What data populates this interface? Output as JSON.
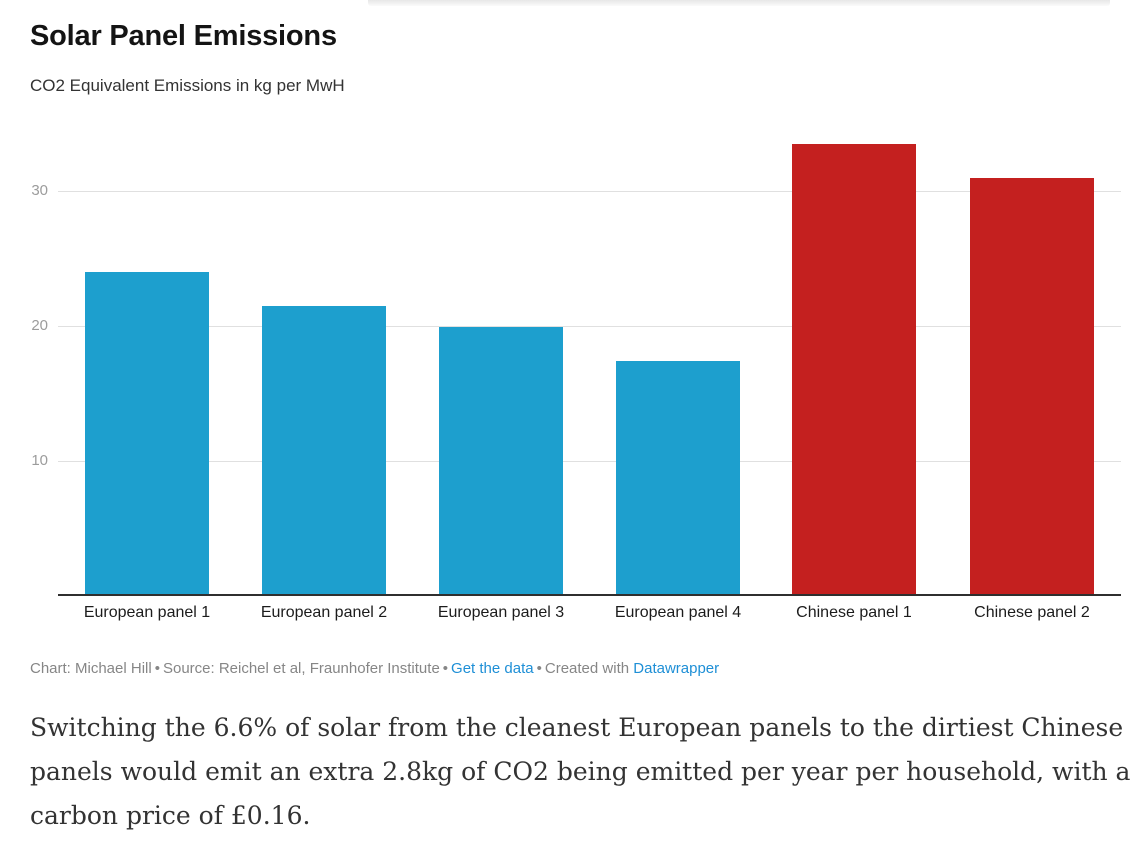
{
  "header": {
    "title": "Solar Panel Emissions",
    "subtitle": "CO2 Equivalent Emissions in kg per MwH"
  },
  "chart_data": {
    "type": "bar",
    "title": "Solar Panel Emissions",
    "subtitle": "CO2 Equivalent Emissions in kg per MwH",
    "categories": [
      "European panel 1",
      "European panel 2",
      "European panel 3",
      "European panel 4",
      "Chinese panel 1",
      "Chinese panel 2"
    ],
    "values": [
      24,
      21.5,
      19.9,
      17.4,
      33.5,
      31
    ],
    "bar_colors": [
      "#1d9fce",
      "#1d9fce",
      "#1d9fce",
      "#1d9fce",
      "#c4201f",
      "#c4201f"
    ],
    "yticks": [
      10,
      20,
      30
    ],
    "ylim": [
      0,
      35
    ],
    "xlabel": "",
    "ylabel": "",
    "grid": "horizontal-only",
    "legend": "none",
    "colors": {
      "european_blue": "#1d9fce",
      "chinese_red": "#c4201f",
      "axis_line": "#2f2f2f",
      "gridline": "#e0e0e0",
      "tick_label": "#9c9c9c"
    }
  },
  "footer": {
    "credit": "Chart: Michael Hill",
    "source": "Source: Reichel et al, Fraunhofer Institute",
    "separator": "•",
    "get_data_label": "Get the data",
    "created_with_label": "Created with",
    "datawrapper_label": "Datawrapper",
    "link_color": "#1e8fd6"
  },
  "commentary": {
    "lines": [
      "Switching the 6.6% of solar from the cleanest European panels to the dirtiest Chinese",
      "panels would emit an extra 2.8kg of CO2 being emitted per year per household, with a",
      "carbon price of £0.16."
    ]
  }
}
